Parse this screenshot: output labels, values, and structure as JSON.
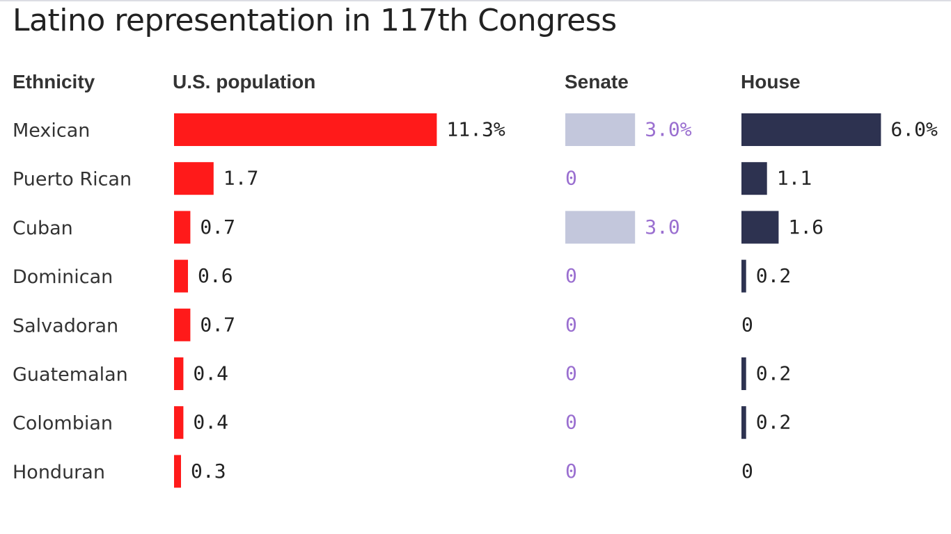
{
  "title": "Latino representation in 117th Congress",
  "columns": {
    "ethnicity": "Ethnicity",
    "population": "U.S. population",
    "senate": "Senate",
    "house": "House"
  },
  "colors": {
    "population": "#ff1a1a",
    "senate_bar": "#c3c7dc",
    "senate_text": "#9a6fd0",
    "house": "#2d3250",
    "text": "#222222"
  },
  "chart_data": {
    "type": "bar",
    "categories": [
      "Mexican",
      "Puerto Rican",
      "Cuban",
      "Dominican",
      "Salvadoran",
      "Guatemalan",
      "Colombian",
      "Honduran"
    ],
    "series": [
      {
        "name": "U.S. population",
        "values": [
          11.3,
          1.7,
          0.7,
          0.6,
          0.7,
          0.4,
          0.4,
          0.3
        ],
        "labels": [
          "11.3%",
          "1.7",
          "0.7",
          "0.6",
          "0.7",
          "0.4",
          "0.4",
          "0.3"
        ]
      },
      {
        "name": "Senate",
        "values": [
          3.0,
          0,
          3.0,
          0,
          0,
          0,
          0,
          0
        ],
        "labels": [
          "3.0%",
          "0",
          "3.0",
          "0",
          "0",
          "0",
          "0",
          "0"
        ]
      },
      {
        "name": "House",
        "values": [
          6.0,
          1.1,
          1.6,
          0.2,
          0,
          0.2,
          0.2,
          0
        ],
        "labels": [
          "6.0%",
          "1.1",
          "1.6",
          "0.2",
          "0",
          "0.2",
          "0.2",
          "0"
        ]
      }
    ]
  }
}
